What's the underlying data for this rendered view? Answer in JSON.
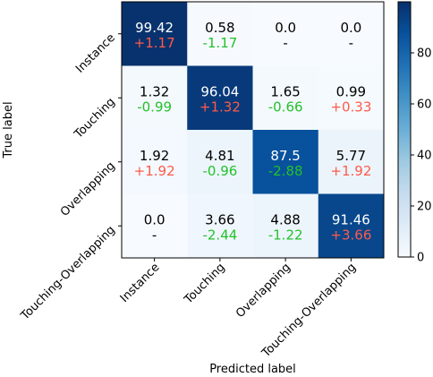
{
  "chart_data": {
    "type": "heatmap",
    "xlabel": "Predicted label",
    "ylabel": "True label",
    "x_categories": [
      "Instance",
      "Touching",
      "Overlapping",
      "Touching-Overlapping"
    ],
    "y_categories": [
      "Instance",
      "Touching",
      "Overlapping",
      "Touching-Overlapping"
    ],
    "values": [
      [
        99.42,
        0.58,
        0.0,
        0.0
      ],
      [
        1.32,
        96.04,
        1.65,
        0.99
      ],
      [
        1.92,
        4.81,
        87.5,
        5.77
      ],
      [
        0.0,
        3.66,
        4.88,
        91.46
      ]
    ],
    "value_labels": [
      [
        "99.42",
        "0.58",
        "0.0",
        "0.0"
      ],
      [
        "1.32",
        "96.04",
        "1.65",
        "0.99"
      ],
      [
        "1.92",
        "4.81",
        "87.5",
        "5.77"
      ],
      [
        "0.0",
        "3.66",
        "4.88",
        "91.46"
      ]
    ],
    "delta_labels": [
      [
        "+1.17",
        "-1.17",
        "-",
        "-"
      ],
      [
        "-0.99",
        "+1.32",
        "-0.66",
        "+0.33"
      ],
      [
        "+1.92",
        "-0.96",
        "-2.88",
        "+1.92"
      ],
      [
        "-",
        "-2.44",
        "-1.22",
        "+3.66"
      ]
    ],
    "colorbar": {
      "range": [
        0,
        100
      ],
      "ticks": [
        0,
        20,
        40,
        60,
        80
      ],
      "tick_labels": [
        "0",
        "20",
        "40",
        "60",
        "80"
      ],
      "colormap": "Blues"
    },
    "colors": {
      "positive_delta": "#ff5a4a",
      "negative_delta": "#22c22a",
      "neutral_delta_dark": "#000000",
      "neutral_delta_light": "#ffffff",
      "light_text": "#ffffff",
      "dark_text": "#000000"
    }
  }
}
